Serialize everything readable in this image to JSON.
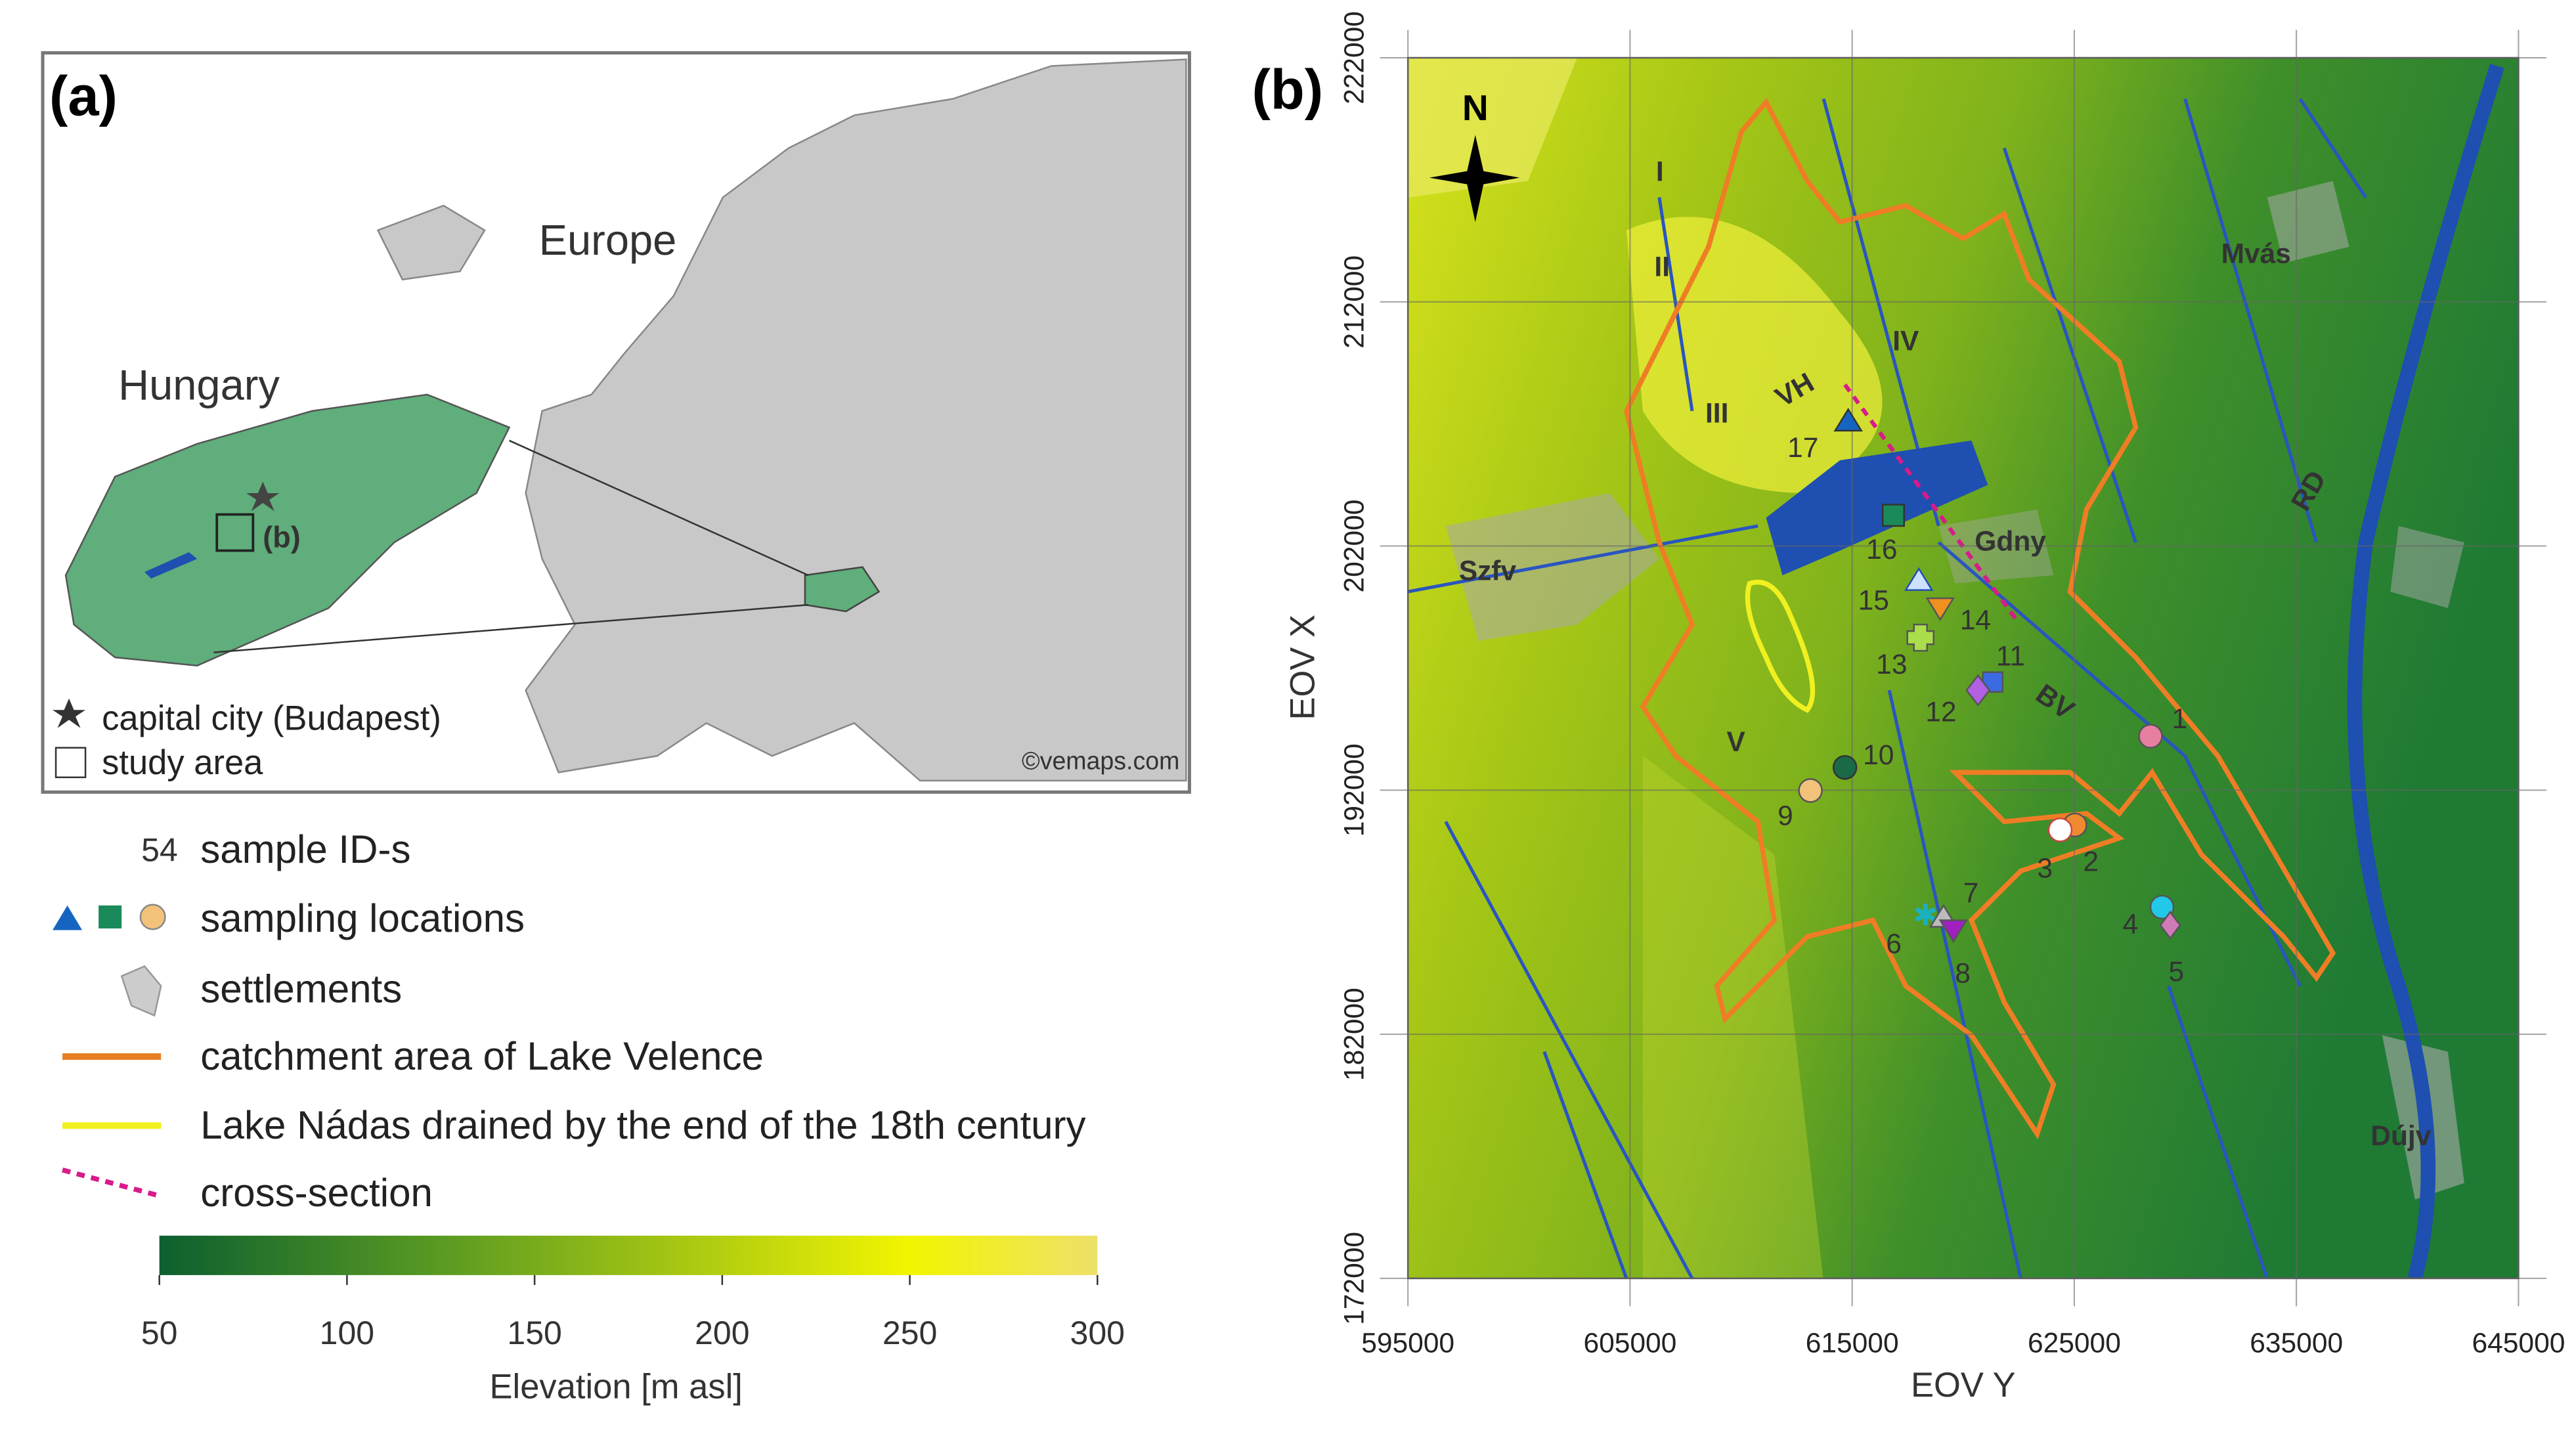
{
  "panel_a": {
    "label": "(a)",
    "europe": "Europe",
    "hungary": "Hungary",
    "inset_label": "(b)",
    "legend": [
      "capital city (Budapest)",
      "study area"
    ],
    "credit": "©vemaps.com"
  },
  "legend": {
    "sample_id_example": "54",
    "items": [
      "sample ID-s",
      "sampling locations",
      "settlements",
      "catchment area of Lake Velence",
      "Lake Nádas drained by the end of the 18th century",
      "cross-section"
    ]
  },
  "colorbar": {
    "ticks": [
      50,
      100,
      150,
      200,
      250,
      300
    ],
    "title": "Elevation [m asl]"
  },
  "panel_b": {
    "label": "(b)",
    "north": "N",
    "x_axis_title": "EOV Y",
    "y_axis_title": "EOV X",
    "xlim": [
      595000,
      645000
    ],
    "xticks": [
      595000,
      605000,
      615000,
      625000,
      635000,
      645000
    ],
    "ylim": [
      172000,
      222000
    ],
    "yticks": [
      172000,
      182000,
      192000,
      202000,
      212000,
      222000
    ],
    "places": [
      "Szfv",
      "Gdny",
      "Mvás",
      "Dújv"
    ],
    "features": [
      "I",
      "II",
      "III",
      "IV",
      "V",
      "VH",
      "BV",
      "RD"
    ],
    "sample_ids": [
      "1",
      "2",
      "3",
      "4",
      "5",
      "6",
      "7",
      "8",
      "9",
      "10",
      "11",
      "12",
      "13",
      "14",
      "15",
      "16",
      "17"
    ]
  }
}
